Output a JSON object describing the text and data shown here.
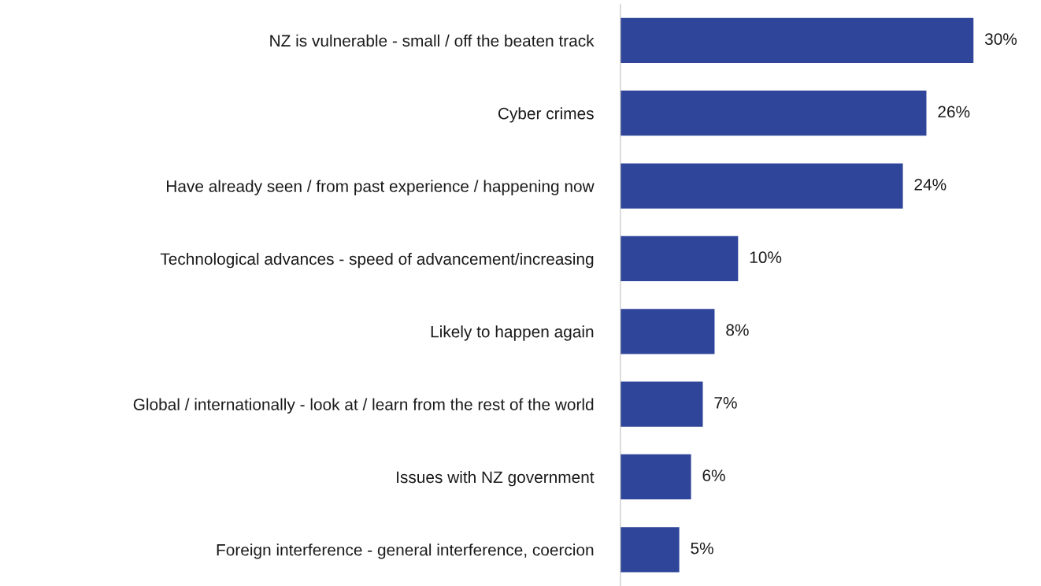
{
  "chart_data": {
    "type": "bar",
    "orientation": "horizontal",
    "categories": [
      "NZ is vulnerable - small / off the beaten track",
      "Cyber crimes",
      "Have already seen / from past experience / happening now",
      "Technological advances - speed of advancement/increasing",
      "Likely to happen again",
      "Global / internationally - look at / learn from the rest of the world",
      "Issues with NZ government",
      "Foreign interference - general interference, coercion"
    ],
    "values": [
      30,
      26,
      24,
      10,
      8,
      7,
      6,
      5
    ],
    "value_labels": [
      "30%",
      "26%",
      "24%",
      "10%",
      "8%",
      "7%",
      "6%",
      "5%"
    ],
    "color": "#2e4599",
    "grid": false,
    "legend": false
  }
}
